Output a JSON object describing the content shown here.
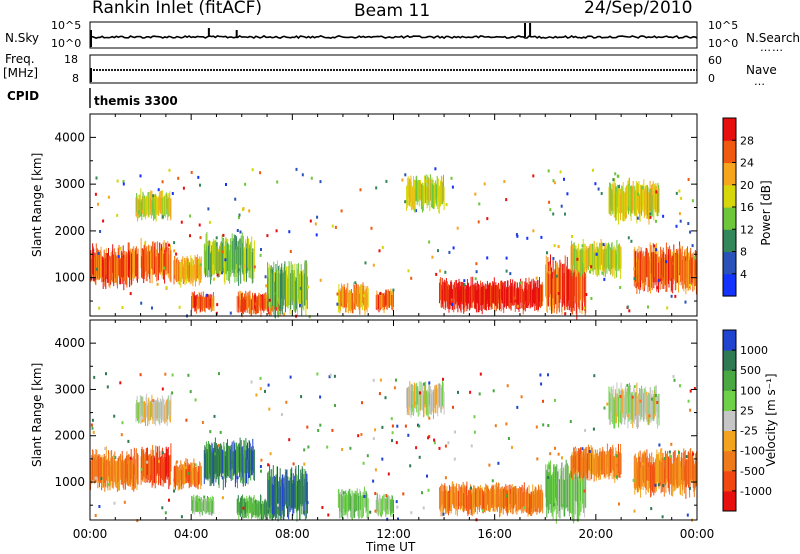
{
  "header": {
    "title": "Rankin Inlet (fitACF)",
    "beam": "Beam 11",
    "date": "24/Sep/2010"
  },
  "strips": {
    "nsky_label": "N.Sky",
    "nsearch_label": "N.Search",
    "nsearch_dots": "……",
    "nsky_ticks_left": [
      "10^5",
      "10^0"
    ],
    "nsearch_ticks_right": [
      "10^5",
      "10^0"
    ],
    "freq_label": "Freq.",
    "freq_unit": "[MHz]",
    "freq_ticks_left": [
      "18",
      "8"
    ],
    "nave_label": "Nave",
    "nave_dots": "…",
    "nave_ticks_right": [
      "60",
      "0"
    ],
    "cpid_label": "CPID",
    "cpid_value": "themis 3300"
  },
  "chart_data": [
    {
      "panel": "power",
      "type": "heatmap",
      "ylabel": "Slant Range [km]",
      "xlim": [
        "00:00",
        "24:00"
      ],
      "ylim": [
        180,
        4500
      ],
      "yticks": [
        1000,
        2000,
        3000,
        4000
      ],
      "colorbar_label": "Power [dB]",
      "colorbar_ticks": [
        4,
        8,
        12,
        16,
        20,
        24,
        28
      ],
      "colorbar_colors": [
        "#1533ff",
        "#2a52b8",
        "#34875a",
        "#6ec63b",
        "#d6d60a",
        "#f7a51d",
        "#f05a10",
        "#e8100f"
      ],
      "blobs": [
        {
          "t0": 0.0,
          "t1": 1.9,
          "r0": 900,
          "r1": 1600,
          "level": 6
        },
        {
          "t0": 2.0,
          "t1": 3.2,
          "r0": 1000,
          "r1": 1700,
          "level": 6
        },
        {
          "t0": 3.3,
          "t1": 4.4,
          "r0": 900,
          "r1": 1400,
          "level": 5
        },
        {
          "t0": 1.8,
          "t1": 3.2,
          "r0": 2300,
          "r1": 2800,
          "level": 4
        },
        {
          "t0": 4.0,
          "t1": 4.9,
          "r0": 300,
          "r1": 650,
          "level": 6
        },
        {
          "t0": 5.8,
          "t1": 7.6,
          "r0": 250,
          "r1": 650,
          "level": 6
        },
        {
          "t0": 4.5,
          "t1": 6.5,
          "r0": 1000,
          "r1": 1800,
          "level": 3
        },
        {
          "t0": 7.0,
          "t1": 8.6,
          "r0": 300,
          "r1": 1200,
          "level": 3
        },
        {
          "t0": 9.8,
          "t1": 11.0,
          "r0": 300,
          "r1": 800,
          "level": 5
        },
        {
          "t0": 11.3,
          "t1": 12.0,
          "r0": 300,
          "r1": 700,
          "level": 6
        },
        {
          "t0": 12.5,
          "t1": 14.0,
          "r0": 2500,
          "r1": 3100,
          "level": 4
        },
        {
          "t0": 13.8,
          "t1": 17.9,
          "r0": 350,
          "r1": 900,
          "level": 7
        },
        {
          "t0": 18.0,
          "t1": 19.6,
          "r0": 300,
          "r1": 1300,
          "level": 6
        },
        {
          "t0": 19.0,
          "t1": 21.0,
          "r0": 1100,
          "r1": 1700,
          "level": 4
        },
        {
          "t0": 20.5,
          "t1": 22.5,
          "r0": 2300,
          "r1": 3000,
          "level": 4
        },
        {
          "t0": 21.5,
          "t1": 24.0,
          "r0": 800,
          "r1": 1600,
          "level": 6
        }
      ]
    },
    {
      "panel": "velocity",
      "type": "heatmap",
      "ylabel": "Slant Range [km]",
      "xlabel": "Time UT",
      "xticks": [
        "00:00",
        "04:00",
        "08:00",
        "12:00",
        "16:00",
        "20:00",
        "00:00"
      ],
      "xlim": [
        "00:00",
        "24:00"
      ],
      "ylim": [
        180,
        4500
      ],
      "yticks": [
        1000,
        2000,
        3000,
        4000
      ],
      "colorbar_label": "Velocity [m s⁻¹]",
      "colorbar_ticks": [
        1000,
        500,
        100,
        25,
        -25,
        -100,
        -500,
        -1000
      ],
      "colorbar_colors": [
        "#2044d0",
        "#2f7a52",
        "#4aa843",
        "#6fd148",
        "#c6c6c6",
        "#f3a41f",
        "#ef7a1a",
        "#f04810",
        "#e8100f"
      ],
      "blobs": [
        {
          "t0": 0.0,
          "t1": 1.9,
          "r0": 900,
          "r1": 1600,
          "level": 6
        },
        {
          "t0": 2.0,
          "t1": 3.2,
          "r0": 1000,
          "r1": 1700,
          "level": 7
        },
        {
          "t0": 3.3,
          "t1": 4.4,
          "r0": 900,
          "r1": 1400,
          "level": 6
        },
        {
          "t0": 1.8,
          "t1": 3.2,
          "r0": 2300,
          "r1": 2800,
          "level": 4
        },
        {
          "t0": 4.0,
          "t1": 4.9,
          "r0": 300,
          "r1": 650,
          "level": 3
        },
        {
          "t0": 5.8,
          "t1": 7.6,
          "r0": 250,
          "r1": 650,
          "level": 2
        },
        {
          "t0": 4.5,
          "t1": 6.5,
          "r0": 1000,
          "r1": 1800,
          "level": 1
        },
        {
          "t0": 7.0,
          "t1": 8.6,
          "r0": 300,
          "r1": 1200,
          "level": 1
        },
        {
          "t0": 9.8,
          "t1": 11.0,
          "r0": 300,
          "r1": 800,
          "level": 3
        },
        {
          "t0": 11.3,
          "t1": 12.0,
          "r0": 300,
          "r1": 700,
          "level": 3
        },
        {
          "t0": 12.5,
          "t1": 14.0,
          "r0": 2500,
          "r1": 3100,
          "level": 4
        },
        {
          "t0": 13.8,
          "t1": 17.9,
          "r0": 350,
          "r1": 900,
          "level": 6
        },
        {
          "t0": 18.0,
          "t1": 19.6,
          "r0": 300,
          "r1": 1300,
          "level": 3
        },
        {
          "t0": 19.0,
          "t1": 21.0,
          "r0": 1100,
          "r1": 1700,
          "level": 6
        },
        {
          "t0": 20.5,
          "t1": 22.5,
          "r0": 2300,
          "r1": 3000,
          "level": 4
        },
        {
          "t0": 21.5,
          "t1": 24.0,
          "r0": 800,
          "r1": 1600,
          "level": 6
        }
      ]
    }
  ]
}
